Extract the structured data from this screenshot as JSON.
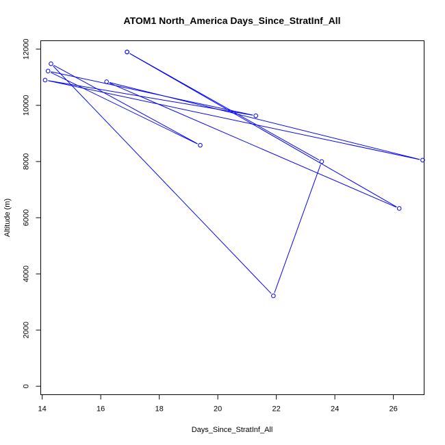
{
  "chart_data": {
    "type": "line",
    "title": "ATOM1 North_America Days_Since_StratInf_All",
    "xlabel": "Days_Since_StratInf_All",
    "ylabel": "Altitude (m)",
    "xlim": [
      13.95,
      27.05
    ],
    "ylim": [
      -300,
      12300
    ],
    "x_ticks": [
      14,
      16,
      18,
      20,
      22,
      24,
      26
    ],
    "y_ticks": [
      0,
      2000,
      4000,
      6000,
      8000,
      10000,
      12000
    ],
    "grid": false,
    "legend": "none",
    "series": [
      {
        "color": "#0000ff",
        "x": [
          16.9,
          23.55,
          21.9,
          14.3,
          19.4,
          14.2,
          21.3,
          14.1,
          27.0,
          16.2,
          26.2,
          16.9
        ],
        "y": [
          11900,
          8000,
          3220,
          11480,
          8580,
          11220,
          9630,
          10900,
          8050,
          10840,
          6330,
          11900
        ]
      }
    ]
  }
}
